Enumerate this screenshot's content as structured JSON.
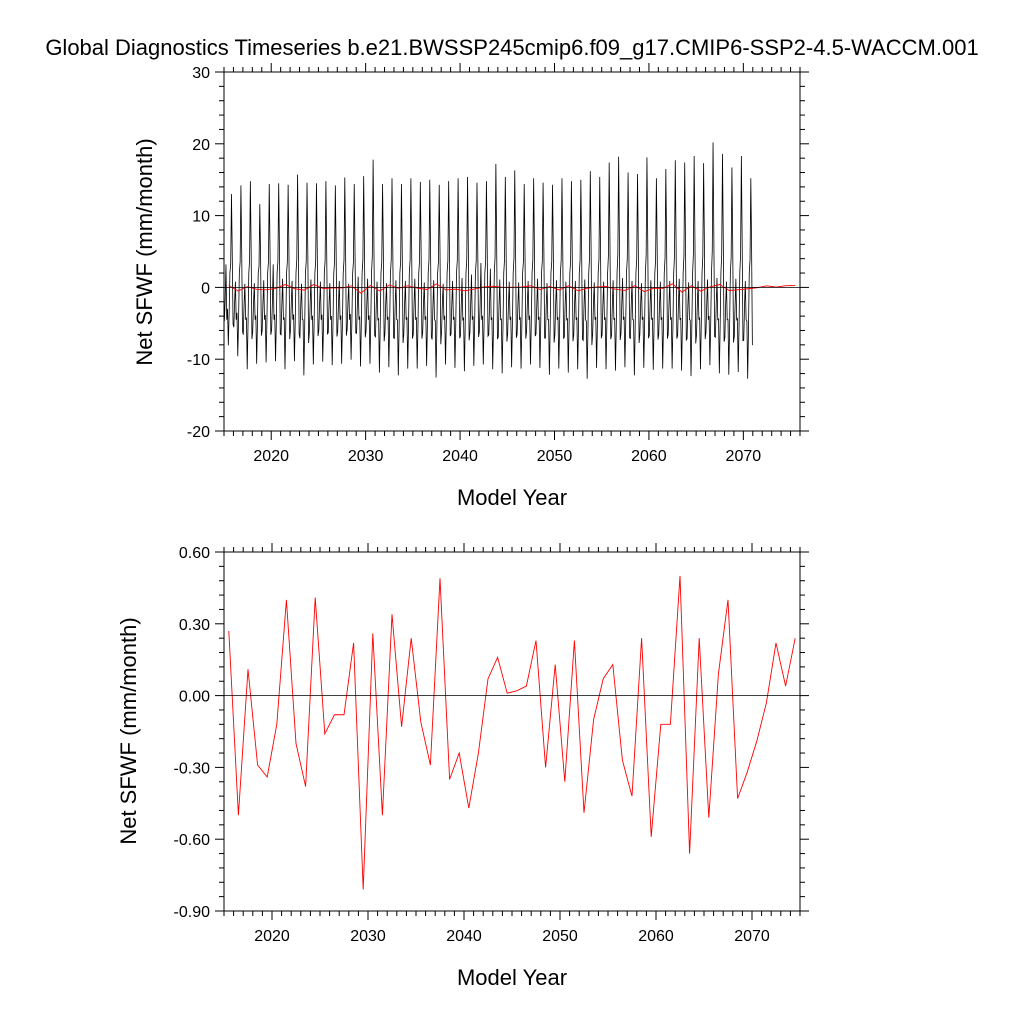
{
  "page": {
    "title": "Global Diagnostics Timeseries b.e21.BWSSP245cmip6.f09_g17.CMIP6-SSP2-4.5-WACCM.001"
  },
  "colors": {
    "monthly_line": "#000000",
    "annual_line": "#ff0000",
    "zero_line": "#000000"
  },
  "chart_data": [
    {
      "type": "line",
      "title": "",
      "xlabel": "Model Year",
      "ylabel": "Net SFWF (mm/month)",
      "xlim": [
        2015,
        2076
      ],
      "ylim": [
        -20,
        30
      ],
      "xticks": [
        2020,
        2030,
        2040,
        2050,
        2060,
        2070
      ],
      "xtick_labels": [
        "2020",
        "2030",
        "2040",
        "2050",
        "2060",
        "2070"
      ],
      "yticks": [
        -20,
        -10,
        0,
        10,
        20,
        30
      ],
      "ytick_labels": [
        "-20",
        "-10",
        "0",
        "10",
        "20",
        "30"
      ],
      "reference_line": 0,
      "grid": false,
      "series": [
        {
          "kind": "monthly",
          "start_year": 2015,
          "months_per_year": 12,
          "annual_peaks": [
            13,
            14.2,
            14.8,
            11.6,
            14.4,
            14.5,
            14.3,
            15.7,
            14.6,
            14.5,
            14.8,
            14.2,
            15.3,
            14.4,
            15.5,
            17.8,
            14.4,
            15.2,
            14.4,
            15.2,
            14.7,
            15.0,
            14.3,
            14.8,
            15.2,
            15.4,
            14.6,
            14.8,
            17.2,
            15.4,
            16.3,
            14.4,
            15.2,
            14.6,
            14.3,
            15.2,
            14.8,
            15.0,
            16.2,
            15.4,
            17.4,
            18.2,
            16.0,
            15.8,
            18.1,
            15.2,
            16.5,
            17.7,
            17.4,
            18.3,
            17.3,
            20.2,
            18.6,
            16.7,
            18.3,
            15.2
          ],
          "annual_troughs": [
            -8.5,
            -10.1,
            -12.0,
            -11.2,
            -11.0,
            -10.8,
            -12.0,
            -10.8,
            -12.9,
            -11.3,
            -10.9,
            -11.4,
            -11.2,
            -10.6,
            -11.6,
            -11.2,
            -12.5,
            -11.7,
            -12.9,
            -11.9,
            -11.9,
            -11.5,
            -13.2,
            -11.3,
            -11.8,
            -12.3,
            -11.5,
            -11.3,
            -12.0,
            -12.6,
            -11.7,
            -11.9,
            -11.3,
            -11.8,
            -12.8,
            -11.9,
            -12.5,
            -12.0,
            -13.4,
            -11.8,
            -12.0,
            -12.2,
            -11.7,
            -12.9,
            -11.8,
            -12.1,
            -11.9,
            -11.9,
            -12.2,
            -13.0,
            -12.0,
            -11.4,
            -12.6,
            -12.8,
            -12.4,
            -13.4
          ],
          "secondary_bumps": [
            3.2,
            0.8,
            0.5,
            0.6,
            1.0,
            3.2,
            1.2,
            0.9,
            0.5,
            1.1,
            0.8,
            0.6,
            0.9,
            0.5,
            1.5,
            1.2,
            0.8,
            0.6,
            1.0,
            0.9,
            1.2,
            0.7,
            1.0,
            0.5,
            0.9,
            1.3,
            1.8,
            3.4,
            2.6,
            1.1,
            0.8,
            0.7,
            0.9,
            1.2,
            0.6,
            1.0,
            0.8,
            0.9,
            1.1,
            0.7,
            0.8,
            1.0,
            1.3,
            0.9,
            0.6,
            1.0,
            0.8,
            0.9,
            1.2,
            0.7,
            0.9,
            1.1,
            1.3,
            0.8,
            1.2,
            0.9
          ]
        },
        {
          "kind": "annual_mean",
          "x": [
            2015.5,
            2016.5,
            2017.5,
            2018.5,
            2019.5,
            2020.5,
            2021.5,
            2022.5,
            2023.5,
            2024.5,
            2025.5,
            2026.5,
            2027.5,
            2028.5,
            2029.5,
            2030.5,
            2031.5,
            2032.5,
            2033.5,
            2034.5,
            2035.5,
            2036.5,
            2037.5,
            2038.5,
            2039.5,
            2040.5,
            2041.5,
            2042.5,
            2043.5,
            2044.5,
            2045.5,
            2046.5,
            2047.5,
            2048.5,
            2049.5,
            2050.5,
            2051.5,
            2052.5,
            2053.5,
            2054.5,
            2055.5,
            2056.5,
            2057.5,
            2058.5,
            2059.5,
            2060.5,
            2061.5,
            2062.5,
            2063.5,
            2064.5,
            2065.5,
            2066.5,
            2067.5,
            2068.5,
            2069.5,
            2070.5,
            2071.5,
            2072.5,
            2073.5,
            2074.5,
            2075.5
          ],
          "values": [
            0.27,
            -0.5,
            0.11,
            -0.29,
            -0.34,
            -0.12,
            0.4,
            -0.2,
            -0.38,
            0.41,
            -0.16,
            -0.08,
            -0.08,
            0.22,
            -0.81,
            0.26,
            -0.5,
            0.34,
            -0.13,
            0.24,
            -0.11,
            -0.29,
            0.49,
            -0.35,
            -0.24,
            -0.47,
            -0.24,
            0.07,
            0.16,
            0.01,
            0.02,
            0.04,
            0.23,
            -0.3,
            0.13,
            -0.36,
            0.23,
            -0.49,
            -0.1,
            0.07,
            0.13,
            -0.27,
            -0.42,
            0.24,
            -0.59,
            -0.12,
            -0.12,
            0.5,
            -0.66,
            0.24,
            -0.51,
            0.09,
            0.4,
            -0.43,
            -0.32,
            -0.19,
            -0.03,
            0.22,
            0.04,
            0.24,
            0.25
          ]
        }
      ]
    },
    {
      "type": "line",
      "title": "",
      "xlabel": "Model Year",
      "ylabel": "Net SFWF (mm/month)",
      "xlim": [
        2015,
        2075
      ],
      "ylim": [
        -0.9,
        0.6
      ],
      "xticks": [
        2020,
        2030,
        2040,
        2050,
        2060,
        2070
      ],
      "xtick_labels": [
        "2020",
        "2030",
        "2040",
        "2050",
        "2060",
        "2070"
      ],
      "yticks": [
        -0.9,
        -0.6,
        -0.3,
        0.0,
        0.3,
        0.6
      ],
      "ytick_labels": [
        "-0.90",
        "-0.60",
        "-0.30",
        "0.00",
        "0.30",
        "0.60"
      ],
      "reference_line": 0,
      "grid": false,
      "series": [
        {
          "kind": "annual_mean",
          "x": [
            2015.5,
            2016.5,
            2017.5,
            2018.5,
            2019.5,
            2020.5,
            2021.5,
            2022.5,
            2023.5,
            2024.5,
            2025.5,
            2026.5,
            2027.5,
            2028.5,
            2029.5,
            2030.5,
            2031.5,
            2032.5,
            2033.5,
            2034.5,
            2035.5,
            2036.5,
            2037.5,
            2038.5,
            2039.5,
            2040.5,
            2041.5,
            2042.5,
            2043.5,
            2044.5,
            2045.5,
            2046.5,
            2047.5,
            2048.5,
            2049.5,
            2050.5,
            2051.5,
            2052.5,
            2053.5,
            2054.5,
            2055.5,
            2056.5,
            2057.5,
            2058.5,
            2059.5,
            2060.5,
            2061.5,
            2062.5,
            2063.5,
            2064.5,
            2065.5,
            2066.5,
            2067.5,
            2068.5,
            2069.5,
            2070.5,
            2071.5,
            2072.5,
            2073.5,
            2074.5
          ],
          "values": [
            0.27,
            -0.5,
            0.11,
            -0.29,
            -0.34,
            -0.12,
            0.4,
            -0.2,
            -0.38,
            0.41,
            -0.16,
            -0.08,
            -0.08,
            0.22,
            -0.81,
            0.26,
            -0.5,
            0.34,
            -0.13,
            0.24,
            -0.11,
            -0.29,
            0.49,
            -0.35,
            -0.24,
            -0.47,
            -0.24,
            0.07,
            0.16,
            0.01,
            0.02,
            0.04,
            0.23,
            -0.3,
            0.13,
            -0.36,
            0.23,
            -0.49,
            -0.1,
            0.07,
            0.13,
            -0.27,
            -0.42,
            0.24,
            -0.59,
            -0.12,
            -0.12,
            0.5,
            -0.66,
            0.24,
            -0.51,
            0.09,
            0.4,
            -0.43,
            -0.32,
            -0.19,
            -0.03,
            0.22,
            0.04,
            0.24
          ]
        }
      ]
    }
  ]
}
